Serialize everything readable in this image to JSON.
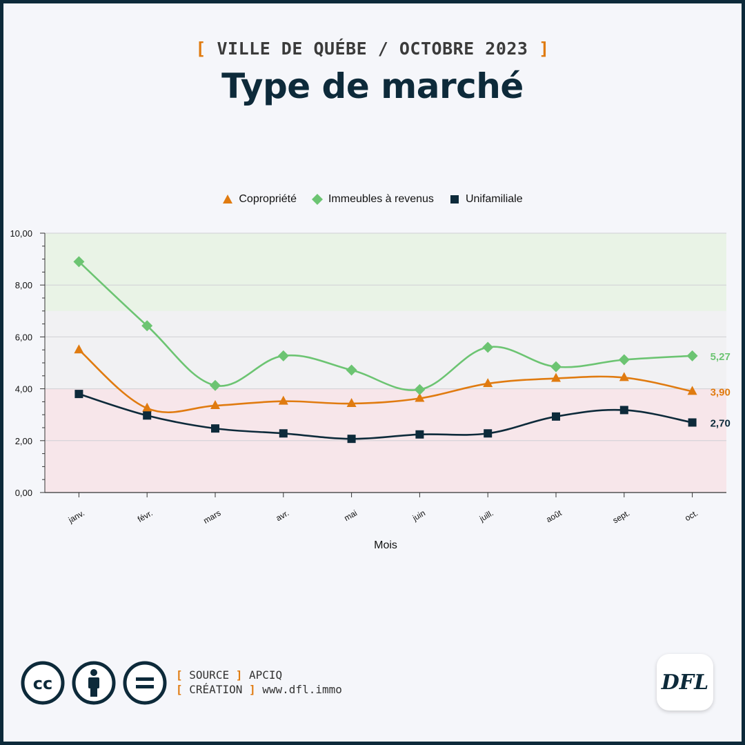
{
  "header": {
    "bracket_open": "[",
    "bracket_close": "]",
    "subtitle": "VILLE DE QUÉBE / OCTOBRE 2023",
    "title": "Type de marché"
  },
  "chart_data": {
    "type": "line",
    "xlabel": "Mois",
    "ylabel": "",
    "ylim": [
      0,
      10
    ],
    "yticks": [
      "0,00",
      "2,00",
      "4,00",
      "6,00",
      "8,00",
      "10,00"
    ],
    "categories": [
      "janv.",
      "févr.",
      "mars",
      "avr.",
      "mai",
      "juin",
      "juill.",
      "août",
      "sept.",
      "oct."
    ],
    "bands": [
      {
        "from": 0,
        "to": 4,
        "color": "#f7e6ea"
      },
      {
        "from": 4,
        "to": 7,
        "color": "#f1f1f3"
      },
      {
        "from": 7,
        "to": 10,
        "color": "#e9f3e6"
      }
    ],
    "legend_position": "top-center",
    "grid": true,
    "series": [
      {
        "name": "Copropriété",
        "marker": "triangle",
        "color": "#e07b10",
        "values": [
          5.5,
          3.25,
          3.35,
          3.52,
          3.43,
          3.63,
          4.2,
          4.4,
          4.43,
          3.9
        ],
        "end_label": "3,90"
      },
      {
        "name": "Immeubles à revenus",
        "marker": "diamond",
        "color": "#6cc472",
        "values": [
          8.9,
          6.43,
          4.13,
          5.27,
          4.72,
          3.97,
          5.6,
          4.85,
          5.12,
          5.27
        ],
        "end_label": "5,27"
      },
      {
        "name": "Unifamiliale",
        "marker": "square",
        "color": "#0d2a3a",
        "values": [
          3.8,
          2.97,
          2.47,
          2.28,
          2.07,
          2.24,
          2.28,
          2.93,
          3.18,
          2.7
        ],
        "end_label": "2,70"
      }
    ]
  },
  "footer": {
    "source_label": "SOURCE",
    "source_value": "APCIQ",
    "creation_label": "CRÉATION",
    "creation_value": "www.dfl.immo",
    "cc_text": "cc",
    "equals_text": "=",
    "logo_text": "DFL",
    "icons": [
      "cc-icon",
      "attribution-icon",
      "no-derivatives-icon"
    ]
  }
}
